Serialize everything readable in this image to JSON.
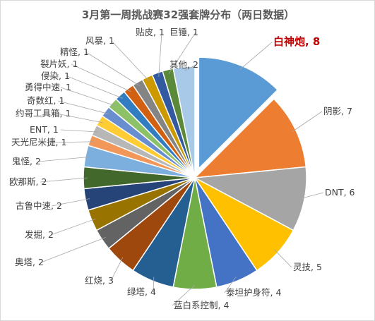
{
  "chart_data": {
    "type": "pie",
    "title": "3月第一周挑战赛32强套牌分布（两日数据）",
    "legend": "none",
    "exploded": [
      "白神炮"
    ],
    "slices": [
      {
        "name": "白神炮",
        "value": 8,
        "color": "#5b9bd5",
        "label": "白神炮, 8",
        "highlight": true
      },
      {
        "name": "阴影",
        "value": 7,
        "color": "#ed7d31",
        "label": "阴影, 7"
      },
      {
        "name": "DNT",
        "value": 6,
        "color": "#a5a5a5",
        "label": "DNT, 6"
      },
      {
        "name": "灵技",
        "value": 5,
        "color": "#ffc000",
        "label": "灵技, 5"
      },
      {
        "name": "泰坦护身符",
        "value": 4,
        "color": "#4472c4",
        "label": "泰坦护身符, 4"
      },
      {
        "name": "蓝白系控制",
        "value": 4,
        "color": "#70ad47",
        "label": "蓝白系控制, 4"
      },
      {
        "name": "绿塔",
        "value": 4,
        "color": "#255e91",
        "label": "绿塔, 4"
      },
      {
        "name": "红烧",
        "value": 3,
        "color": "#9e480e",
        "label": "红烧, 3"
      },
      {
        "name": "奥塔",
        "value": 2,
        "color": "#636363",
        "label": "奥塔, 2"
      },
      {
        "name": "发掘",
        "value": 2,
        "color": "#997300",
        "label": "发掘, 2"
      },
      {
        "name": "古鲁中速",
        "value": 2,
        "color": "#264478",
        "label": "古鲁中速, 2"
      },
      {
        "name": "欧那斯",
        "value": 2,
        "color": "#43682b",
        "label": "欧那斯, 2"
      },
      {
        "name": "鬼怪",
        "value": 2,
        "color": "#7cafdd",
        "label": "鬼怪, 2"
      },
      {
        "name": "天光尼米捷",
        "value": 1,
        "color": "#f1975a",
        "label": "天光尼米捷, 1"
      },
      {
        "name": "ENT",
        "value": 1,
        "color": "#b7b7b7",
        "label": "ENT, 1"
      },
      {
        "name": "约哥工具箱",
        "value": 1,
        "color": "#ffcd33",
        "label": "约哥工具箱, 1"
      },
      {
        "name": "奇数红",
        "value": 1,
        "color": "#698ed0",
        "label": "奇数红, 1"
      },
      {
        "name": "勇得中速",
        "value": 1,
        "color": "#8cc168",
        "label": "勇得中速, 1"
      },
      {
        "name": "侵染",
        "value": 1,
        "color": "#327dc2",
        "label": "侵染, 1"
      },
      {
        "name": "裂片妖",
        "value": 1,
        "color": "#d26012",
        "label": "裂片妖, 1"
      },
      {
        "name": "精怪",
        "value": 1,
        "color": "#848484",
        "label": "精怪, 1"
      },
      {
        "name": "风暴",
        "value": 1,
        "color": "#cc9a00",
        "label": "风暴, 1"
      },
      {
        "name": "贴皮",
        "value": 1,
        "color": "#335aa1",
        "label": "贴皮, 1"
      },
      {
        "name": "巨锤",
        "value": 1,
        "color": "#5a8a39",
        "label": "巨锤, 1"
      },
      {
        "name": "其他",
        "value": 2,
        "color": "#a9c9e8",
        "label": "其他, 2"
      }
    ]
  }
}
